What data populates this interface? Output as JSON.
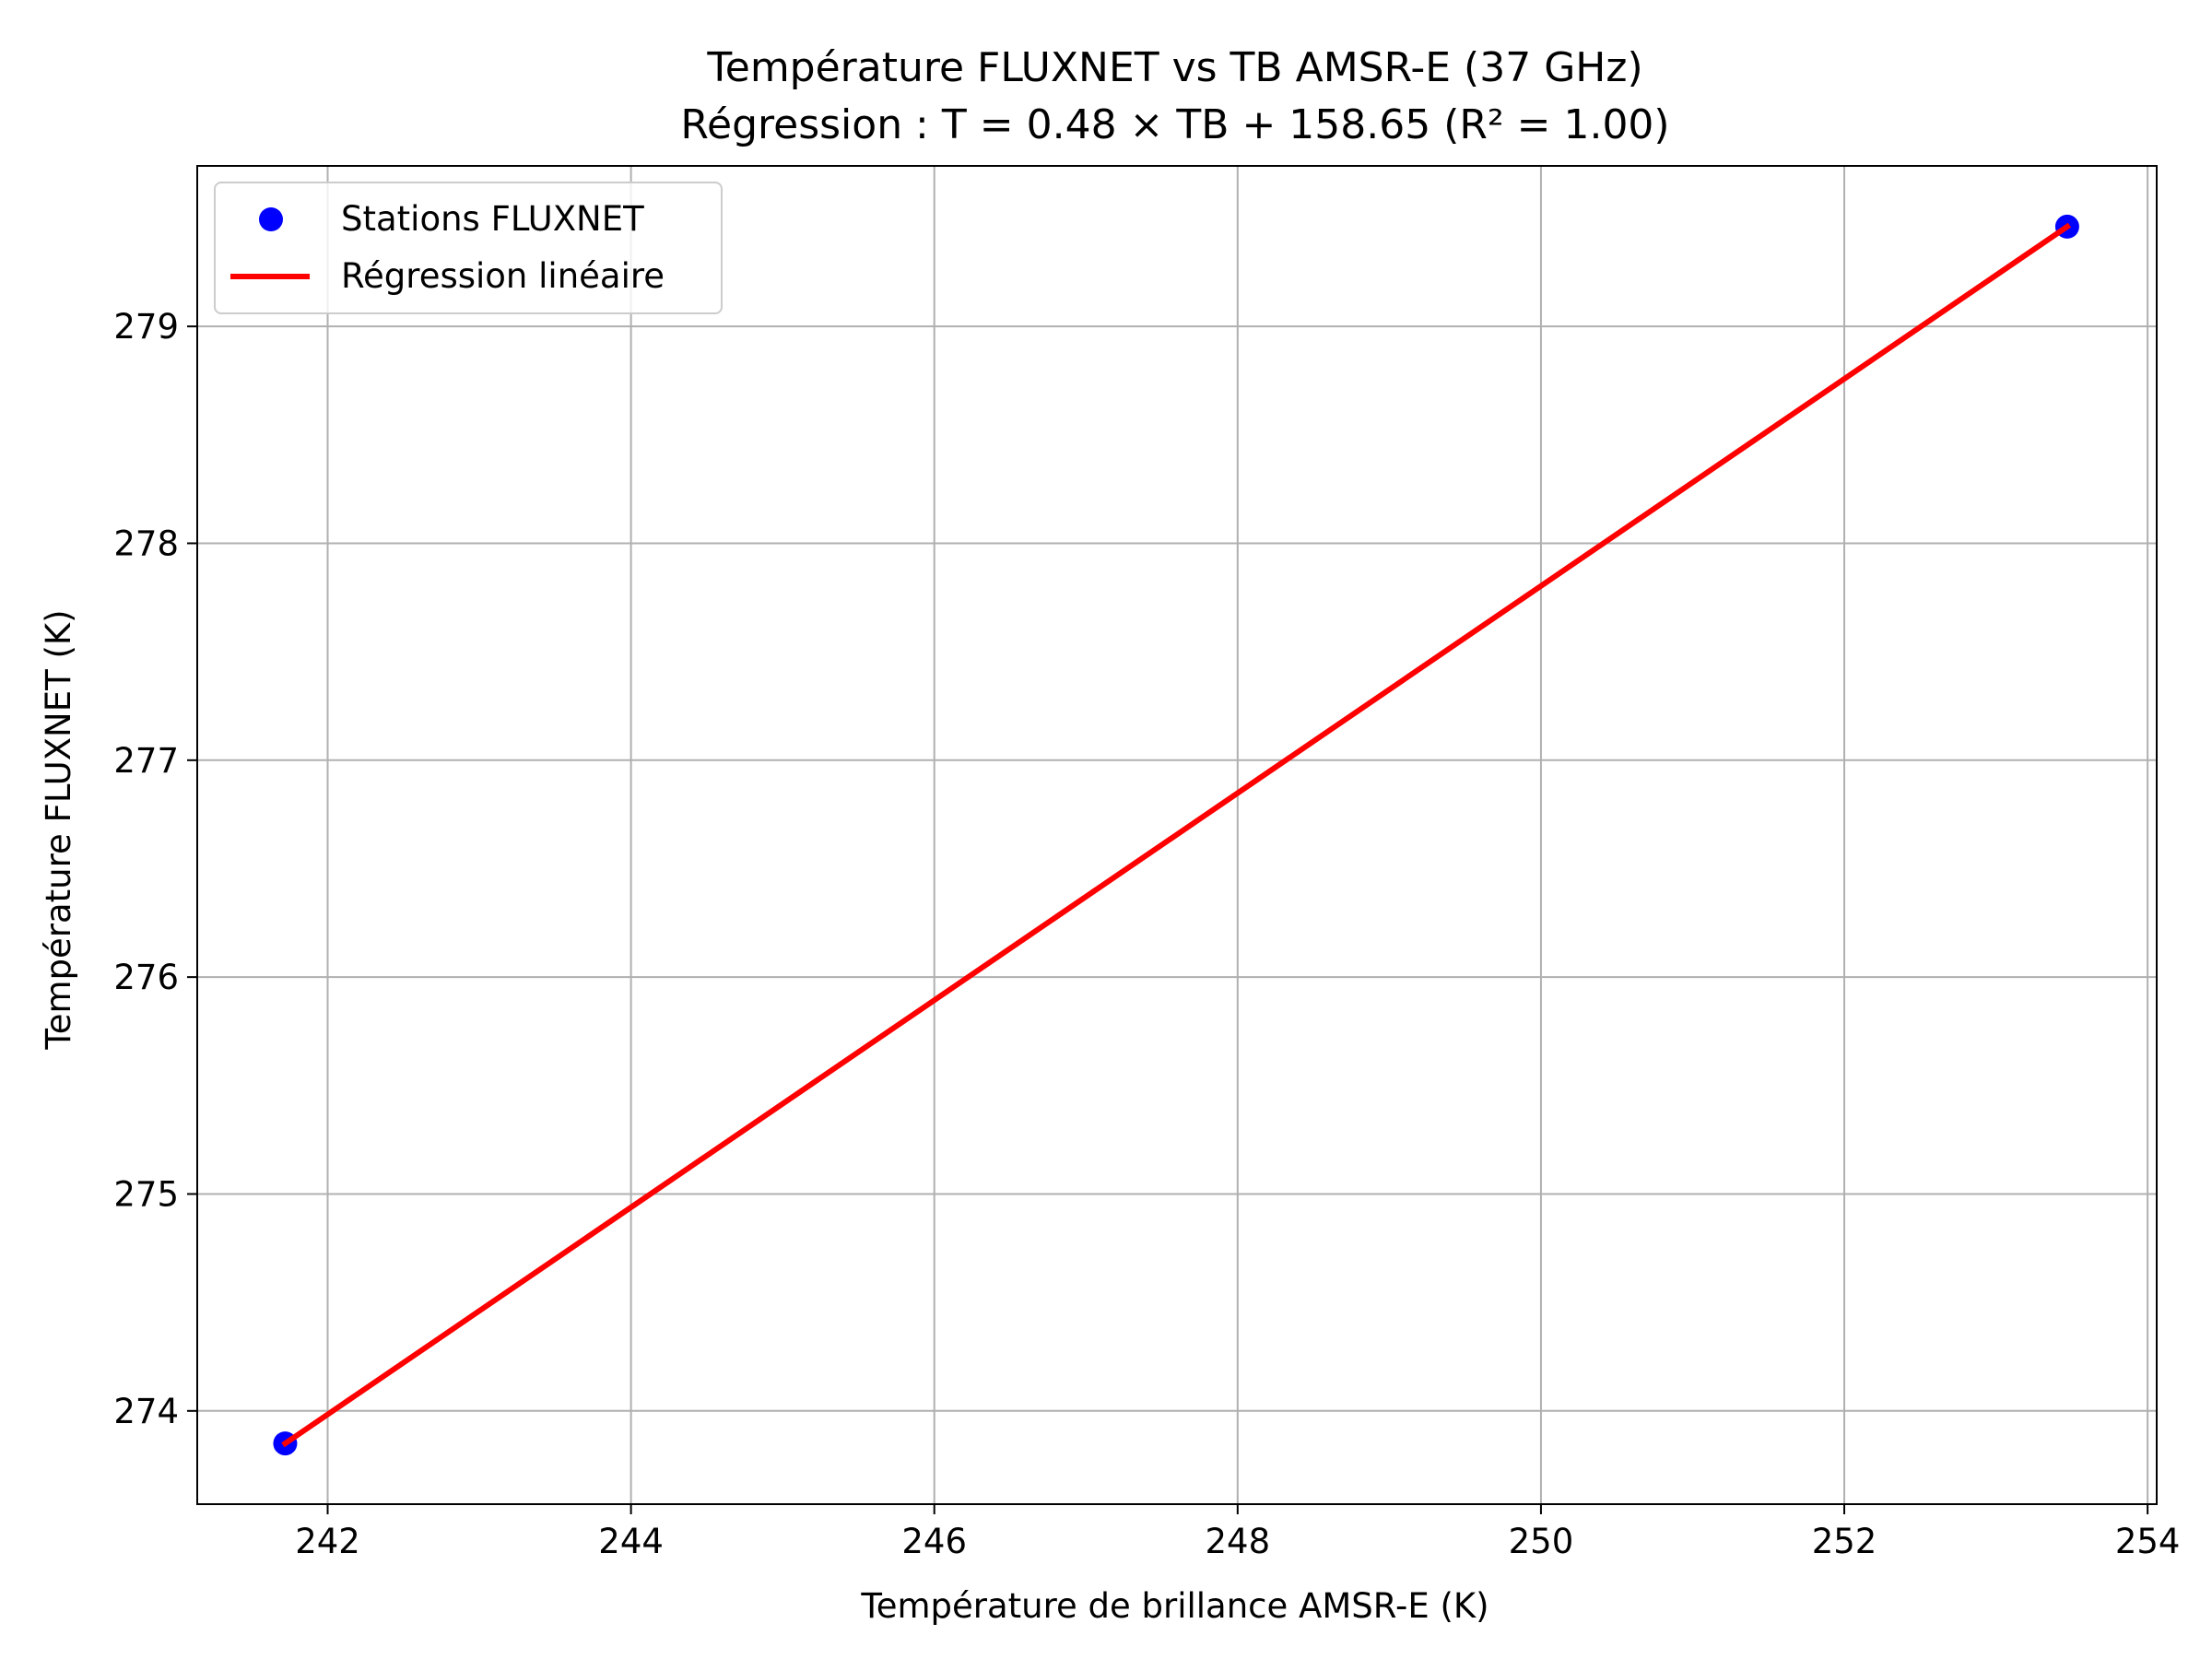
{
  "chart_data": {
    "type": "scatter",
    "title": "Température FLUXNET vs TB AMSR-E (37 GHz)",
    "subtitle": "Régression : T = 0.48 × TB + 158.65 (R² = 1.00)",
    "xlabel": "Température de brillance AMSR-E (K)",
    "ylabel": "Température FLUXNET (K)",
    "xlim": [
      241.14,
      254.06
    ],
    "ylim": [
      273.57,
      279.74
    ],
    "xticks": [
      242,
      244,
      246,
      248,
      250,
      252,
      254
    ],
    "yticks": [
      274,
      275,
      276,
      277,
      278,
      279
    ],
    "grid": true,
    "legend_position": "top-left",
    "series": [
      {
        "name": "Stations FLUXNET",
        "kind": "scatter",
        "color": "#0000ff",
        "points": [
          {
            "x": 241.72,
            "y": 273.85
          },
          {
            "x": 253.47,
            "y": 279.46
          }
        ]
      },
      {
        "name": "Régression linéaire",
        "kind": "line",
        "color": "#ff0000",
        "points": [
          {
            "x": 241.72,
            "y": 273.85
          },
          {
            "x": 253.47,
            "y": 279.46
          }
        ]
      }
    ]
  }
}
